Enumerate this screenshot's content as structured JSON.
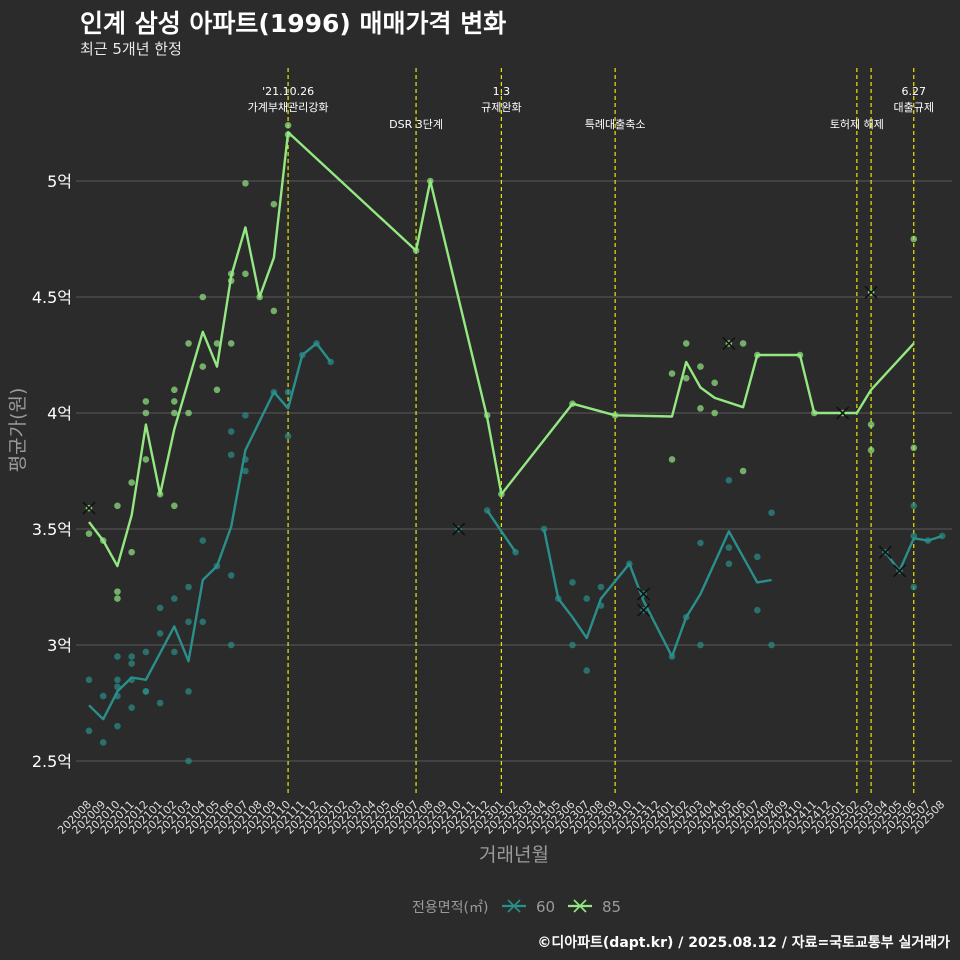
{
  "title": "인계 삼성 아파트(1996) 매매가격 변화",
  "subtitle": "최근 5개년 한정",
  "caption": "©디아파트(dapt.kr) / 2025.08.12 / 자료=국토교통부 실거래가",
  "colors": {
    "background": "#2b2b2b",
    "grid": "#5a5a5a",
    "event_line": "#e8e800",
    "s60": "#2a8f8b",
    "s85": "#93e882",
    "text": "#ffffff",
    "muted": "#9a9a9a"
  },
  "chart_data": {
    "type": "line",
    "xlabel": "거래년월",
    "ylabel": "평균가(원)",
    "x_categories": [
      "202008",
      "202009",
      "202010",
      "202011",
      "202012",
      "202101",
      "202102",
      "202103",
      "202104",
      "202105",
      "202106",
      "202107",
      "202108",
      "202109",
      "202110",
      "202111",
      "202112",
      "202201",
      "202202",
      "202203",
      "202204",
      "202205",
      "202206",
      "202207",
      "202208",
      "202209",
      "202210",
      "202211",
      "202212",
      "202301",
      "202302",
      "202303",
      "202304",
      "202305",
      "202306",
      "202307",
      "202308",
      "202309",
      "202310",
      "202311",
      "202312",
      "202401",
      "202402",
      "202403",
      "202404",
      "202405",
      "202406",
      "202407",
      "202408",
      "202409",
      "202410",
      "202411",
      "202412",
      "202501",
      "202502",
      "202503",
      "202504",
      "202505",
      "202506",
      "202507",
      "202508"
    ],
    "y_ticks": [
      {
        "value": 2.5,
        "label": "2.5억"
      },
      {
        "value": 3.0,
        "label": "3억"
      },
      {
        "value": 3.5,
        "label": "3.5억"
      },
      {
        "value": 4.0,
        "label": "4억"
      },
      {
        "value": 4.5,
        "label": "4.5억"
      },
      {
        "value": 5.0,
        "label": "5억"
      }
    ],
    "ylim": [
      2.35,
      5.4
    ],
    "y_unit": "억",
    "legend": {
      "title": "전용면적(㎡)",
      "position": "bottom"
    },
    "events": [
      {
        "x": "202110",
        "label": "'21.10.26\n가계부채관리강화"
      },
      {
        "x": "202207",
        "label": "DSR 3단계"
      },
      {
        "x": "202301",
        "label": "1.3\n규제완화"
      },
      {
        "x": "202309",
        "label": "특례대출축소"
      },
      {
        "x": "202502",
        "label": "토허제 해제"
      },
      {
        "x": "202503",
        "label": ""
      },
      {
        "x": "202506",
        "label": "6.27\n대출규제"
      }
    ],
    "series": [
      {
        "name": "60",
        "color": "#2a8f8b",
        "line": [
          [
            [
              "202008",
              2.74
            ],
            [
              "202009",
              2.68
            ],
            [
              "202010",
              2.8
            ],
            [
              "202011",
              2.86
            ],
            [
              "202012",
              2.85
            ],
            [
              "202102",
              3.08
            ],
            [
              "202103",
              2.93
            ],
            [
              "202104",
              3.28
            ],
            [
              "202105",
              3.34
            ],
            [
              "202106",
              3.51
            ],
            [
              "202107",
              3.84
            ],
            [
              "202109",
              4.09
            ],
            [
              "202110",
              4.02
            ],
            [
              "202111",
              4.25
            ],
            [
              "202112",
              4.3
            ],
            [
              "202201",
              4.22
            ]
          ],
          [
            [
              "202212",
              3.58
            ],
            [
              "202301",
              3.49
            ],
            [
              "202302",
              3.4
            ]
          ],
          [
            [
              "202304",
              3.5
            ],
            [
              "202305",
              3.2
            ],
            [
              "202306",
              3.12
            ],
            [
              "202307",
              3.03
            ],
            [
              "202308",
              3.2
            ],
            [
              "202310",
              3.35
            ],
            [
              "202311",
              3.19
            ],
            [
              "202401",
              2.95
            ],
            [
              "202402",
              3.12
            ],
            [
              "202403",
              3.22
            ],
            [
              "202405",
              3.49
            ],
            [
              "202407",
              3.27
            ],
            [
              "202408",
              3.28
            ]
          ],
          [
            [
              "202504",
              3.4
            ],
            [
              "202505",
              3.32
            ],
            [
              "202506",
              3.46
            ],
            [
              "202507",
              3.45
            ],
            [
              "202508",
              3.47
            ]
          ]
        ],
        "points": [
          [
            "202008",
            2.85
          ],
          [
            "202008",
            2.63
          ],
          [
            "202009",
            2.78
          ],
          [
            "202009",
            2.58
          ],
          [
            "202010",
            2.95
          ],
          [
            "202010",
            2.85
          ],
          [
            "202010",
            2.82
          ],
          [
            "202010",
            2.78
          ],
          [
            "202010",
            2.65
          ],
          [
            "202011",
            2.95
          ],
          [
            "202011",
            2.92
          ],
          [
            "202011",
            2.85
          ],
          [
            "202011",
            2.73
          ],
          [
            "202012",
            2.97
          ],
          [
            "202012",
            2.8
          ],
          [
            "202012",
            2.8
          ],
          [
            "202101",
            3.16
          ],
          [
            "202101",
            3.05
          ],
          [
            "202101",
            2.75
          ],
          [
            "202102",
            3.2
          ],
          [
            "202102",
            2.97
          ],
          [
            "202103",
            3.25
          ],
          [
            "202103",
            3.1
          ],
          [
            "202103",
            2.8
          ],
          [
            "202103",
            2.5
          ],
          [
            "202104",
            3.45
          ],
          [
            "202104",
            3.1
          ],
          [
            "202105",
            3.34
          ],
          [
            "202106",
            3.92
          ],
          [
            "202106",
            3.82
          ],
          [
            "202106",
            3.3
          ],
          [
            "202106",
            3.0
          ],
          [
            "202107",
            3.99
          ],
          [
            "202107",
            3.8
          ],
          [
            "202107",
            3.75
          ],
          [
            "202109",
            4.09
          ],
          [
            "202110",
            4.09
          ],
          [
            "202110",
            3.9
          ],
          [
            "202111",
            4.25
          ],
          [
            "202112",
            4.3
          ],
          [
            "202201",
            4.22
          ],
          [
            "202212",
            3.58
          ],
          [
            "202302",
            3.4
          ],
          [
            "202304",
            3.5
          ],
          [
            "202305",
            3.2
          ],
          [
            "202306",
            3.27
          ],
          [
            "202306",
            3.0
          ],
          [
            "202307",
            3.2
          ],
          [
            "202307",
            2.89
          ],
          [
            "202308",
            3.25
          ],
          [
            "202308",
            3.17
          ],
          [
            "202310",
            3.35
          ],
          [
            "202401",
            2.95
          ],
          [
            "202402",
            3.12
          ],
          [
            "202403",
            3.44
          ],
          [
            "202403",
            3.0
          ],
          [
            "202405",
            3.71
          ],
          [
            "202405",
            3.42
          ],
          [
            "202405",
            3.35
          ],
          [
            "202407",
            3.38
          ],
          [
            "202407",
            3.15
          ],
          [
            "202408",
            3.57
          ],
          [
            "202408",
            3.0
          ],
          [
            "202506",
            3.6
          ],
          [
            "202506",
            3.47
          ],
          [
            "202506",
            3.25
          ],
          [
            "202507",
            3.45
          ],
          [
            "202508",
            3.47
          ]
        ],
        "single_marks": [
          [
            "202210",
            3.5
          ],
          [
            "202311",
            3.22
          ],
          [
            "202311",
            3.15
          ],
          [
            "202504",
            3.4
          ],
          [
            "202505",
            3.32
          ]
        ]
      },
      {
        "name": "85",
        "color": "#93e882",
        "line": [
          [
            [
              "202008",
              3.53
            ],
            [
              "202009",
              3.45
            ],
            [
              "202010",
              3.34
            ],
            [
              "202011",
              3.56
            ],
            [
              "202012",
              3.95
            ],
            [
              "202101",
              3.65
            ],
            [
              "202102",
              3.93
            ],
            [
              "202104",
              4.35
            ],
            [
              "202105",
              4.2
            ],
            [
              "202106",
              4.59
            ],
            [
              "202107",
              4.8
            ],
            [
              "202108",
              4.5
            ],
            [
              "202109",
              4.67
            ],
            [
              "202110",
              5.21
            ],
            [
              "202207",
              4.7
            ],
            [
              "202208",
              5.0
            ],
            [
              "202212",
              3.98
            ],
            [
              "202301",
              3.65
            ],
            [
              "202306",
              4.04
            ],
            [
              "202309",
              3.99
            ],
            [
              "202401",
              3.985
            ],
            [
              "202402",
              4.22
            ],
            [
              "202403",
              4.11
            ],
            [
              "202404",
              4.065
            ],
            [
              "202406",
              4.025
            ],
            [
              "202407",
              4.25
            ],
            [
              "202410",
              4.25
            ],
            [
              "202411",
              4.0
            ],
            [
              "202502",
              4.0
            ],
            [
              "202503",
              4.1
            ],
            [
              "202506",
              4.3
            ]
          ]
        ],
        "points": [
          [
            "202008",
            3.48
          ],
          [
            "202009",
            3.45
          ],
          [
            "202010",
            3.6
          ],
          [
            "202010",
            3.23
          ],
          [
            "202010",
            3.2
          ],
          [
            "202011",
            3.7
          ],
          [
            "202011",
            3.4
          ],
          [
            "202012",
            4.05
          ],
          [
            "202012",
            4.0
          ],
          [
            "202012",
            3.8
          ],
          [
            "202101",
            3.65
          ],
          [
            "202102",
            4.1
          ],
          [
            "202102",
            4.05
          ],
          [
            "202102",
            4.0
          ],
          [
            "202102",
            3.6
          ],
          [
            "202103",
            4.3
          ],
          [
            "202103",
            4.0
          ],
          [
            "202104",
            4.5
          ],
          [
            "202104",
            4.2
          ],
          [
            "202105",
            4.3
          ],
          [
            "202105",
            4.1
          ],
          [
            "202106",
            4.6
          ],
          [
            "202106",
            4.57
          ],
          [
            "202106",
            4.3
          ],
          [
            "202107",
            4.99
          ],
          [
            "202107",
            4.6
          ],
          [
            "202108",
            4.5
          ],
          [
            "202109",
            4.9
          ],
          [
            "202109",
            4.44
          ],
          [
            "202110",
            5.24
          ],
          [
            "202110",
            5.2
          ],
          [
            "202207",
            4.7
          ],
          [
            "202208",
            5.0
          ],
          [
            "202212",
            3.99
          ],
          [
            "202301",
            3.65
          ],
          [
            "202306",
            4.04
          ],
          [
            "202309",
            3.99
          ],
          [
            "202401",
            3.8
          ],
          [
            "202401",
            4.17
          ],
          [
            "202402",
            4.3
          ],
          [
            "202402",
            4.15
          ],
          [
            "202403",
            4.2
          ],
          [
            "202403",
            4.02
          ],
          [
            "202404",
            4.13
          ],
          [
            "202404",
            4.0
          ],
          [
            "202406",
            4.3
          ],
          [
            "202406",
            3.75
          ],
          [
            "202407",
            4.25
          ],
          [
            "202410",
            4.25
          ],
          [
            "202411",
            4.0
          ],
          [
            "202503",
            3.95
          ],
          [
            "202503",
            3.84
          ],
          [
            "202506",
            4.75
          ],
          [
            "202506",
            3.85
          ]
        ],
        "single_marks": [
          [
            "202008",
            3.59
          ],
          [
            "202405",
            4.3
          ],
          [
            "202501",
            4.0
          ],
          [
            "202503",
            4.52
          ]
        ]
      }
    ]
  }
}
